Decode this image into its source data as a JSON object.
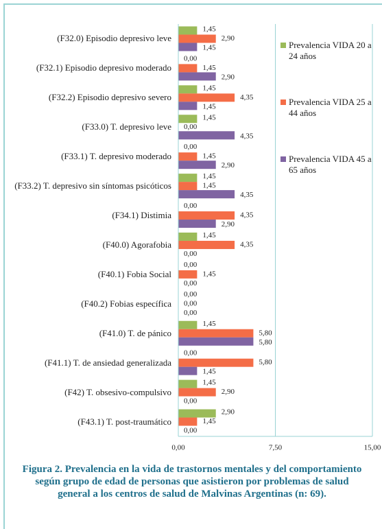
{
  "chart_data": {
    "type": "bar",
    "orientation": "horizontal",
    "title": "Figura 2. Prevalencia en la vida de trastornos mentales y del comportamiento según grupo de edad de personas que asistieron por problemas de salud general a los centros de salud de Malvinas Argentinas (n: 69).",
    "categories": [
      "(F32.0) Episodio depresivo leve",
      "(F32.1) Episodio depresivo moderado",
      "(F32.2) Episodio depresivo severo",
      "(F33.0) T. depresivo leve",
      "(F33.1) T. depresivo moderado",
      "(F33.2) T. depresivo sin síntomas psicóticos",
      "(F34.1) Distimia",
      "(F40.0) Agorafobia",
      "(F40.1) Fobia Social",
      "(F40.2) Fobias específica",
      "(F41.0) T. de pánico",
      "(F41.1) T. de ansiedad generalizada",
      "(F42) T. obsesivo-compulsivo",
      "(F43.1) T. post-traumático"
    ],
    "series": [
      {
        "name": "Prevalencia VIDA 20 a 24 años",
        "color": "#9bbb59",
        "values": [
          1.45,
          0,
          1.45,
          1.45,
          0,
          1.45,
          0,
          1.45,
          0,
          0,
          1.45,
          0,
          1.45,
          2.9
        ],
        "value_labels": [
          "1,45",
          "0,00",
          "1,45",
          "1,45",
          "0,00",
          "1,45",
          "0,00",
          "1,45",
          "0,00",
          "0,00",
          "1,45",
          "0,00",
          "1,45",
          "2,90"
        ]
      },
      {
        "name": "Prevalencia VIDA 25 a 44 años",
        "color": "#f46d47",
        "values": [
          2.9,
          1.45,
          4.35,
          0,
          1.45,
          1.45,
          4.35,
          4.35,
          1.45,
          0,
          5.8,
          5.8,
          2.9,
          1.45
        ],
        "value_labels": [
          "2,90",
          "1,45",
          "4,35",
          "0,00",
          "1,45",
          "1,45",
          "4,35",
          "4,35",
          "1,45",
          "0,00",
          "5,80",
          "5,80",
          "2,90",
          "1,45"
        ]
      },
      {
        "name": "Prevalencia VIDA 45 a 65 años",
        "color": "#8064a2",
        "values": [
          1.45,
          2.9,
          1.45,
          4.35,
          2.9,
          4.35,
          2.9,
          0,
          0,
          0,
          5.8,
          1.45,
          0,
          0
        ],
        "value_labels": [
          "1,45",
          "2,90",
          "1,45",
          "4,35",
          "2,90",
          "4,35",
          "2,90",
          "0,00",
          "0,00",
          "0,00",
          "5,80",
          "1,45",
          "0,00",
          "0,00"
        ]
      }
    ],
    "xlim": [
      0,
      15
    ],
    "xticks": [
      {
        "value": 0,
        "label": "0,00"
      },
      {
        "value": 7.5,
        "label": "7,50"
      },
      {
        "value": 15,
        "label": "15,00"
      }
    ],
    "grid": true,
    "legend": "right"
  }
}
